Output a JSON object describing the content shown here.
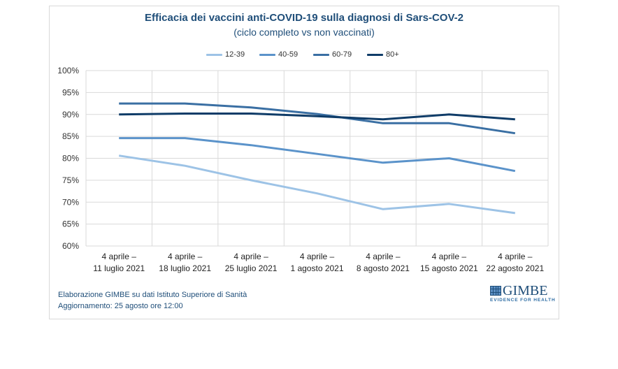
{
  "chart_data": {
    "type": "line",
    "title": "Efficacia dei vaccini anti-COVID-19 sulla diagnosi di Sars-COV-2",
    "subtitle": "(ciclo completo vs non vaccinati)",
    "xlabel": "",
    "ylabel": "",
    "ylim": [
      60,
      100
    ],
    "yticks": [
      60,
      65,
      70,
      75,
      80,
      85,
      90,
      95,
      100
    ],
    "ytick_labels": [
      "60%",
      "65%",
      "70%",
      "75%",
      "80%",
      "85%",
      "90%",
      "95%",
      "100%"
    ],
    "grid": true,
    "legend_position": "top-center",
    "categories": [
      [
        "4 aprile –",
        "11 luglio 2021"
      ],
      [
        "4 aprile –",
        "18 luglio 2021"
      ],
      [
        "4 aprile –",
        "25 luglio 2021"
      ],
      [
        "4 aprile –",
        "1 agosto 2021"
      ],
      [
        "4 aprile –",
        "8 agosto 2021"
      ],
      [
        "4 aprile –",
        "15 agosto 2021"
      ],
      [
        "4 aprile –",
        "22 agosto 2021"
      ]
    ],
    "series": [
      {
        "name": "12-39",
        "color": "#9dc3e6",
        "values": [
          80.6,
          78.3,
          75.0,
          72.0,
          68.4,
          69.6,
          67.5
        ]
      },
      {
        "name": "40-59",
        "color": "#5b93ca",
        "values": [
          84.6,
          84.6,
          83.0,
          81.0,
          79.0,
          80.0,
          77.1
        ]
      },
      {
        "name": "60-79",
        "color": "#3a6fa3",
        "values": [
          92.5,
          92.5,
          91.6,
          90.1,
          88.0,
          88.0,
          85.7
        ]
      },
      {
        "name": "80+",
        "color": "#0f3c68",
        "values": [
          90.0,
          90.2,
          90.2,
          89.6,
          88.9,
          90.0,
          88.9
        ]
      }
    ]
  },
  "footer": {
    "source": "Elaborazione GIMBE su dati Istituto Superiore di Sanità",
    "updated": "Aggiornamento:  25 agosto ore 12:00"
  },
  "logo": {
    "name": "GIMBE",
    "tagline": "EVIDENCE FOR HEALTH"
  }
}
